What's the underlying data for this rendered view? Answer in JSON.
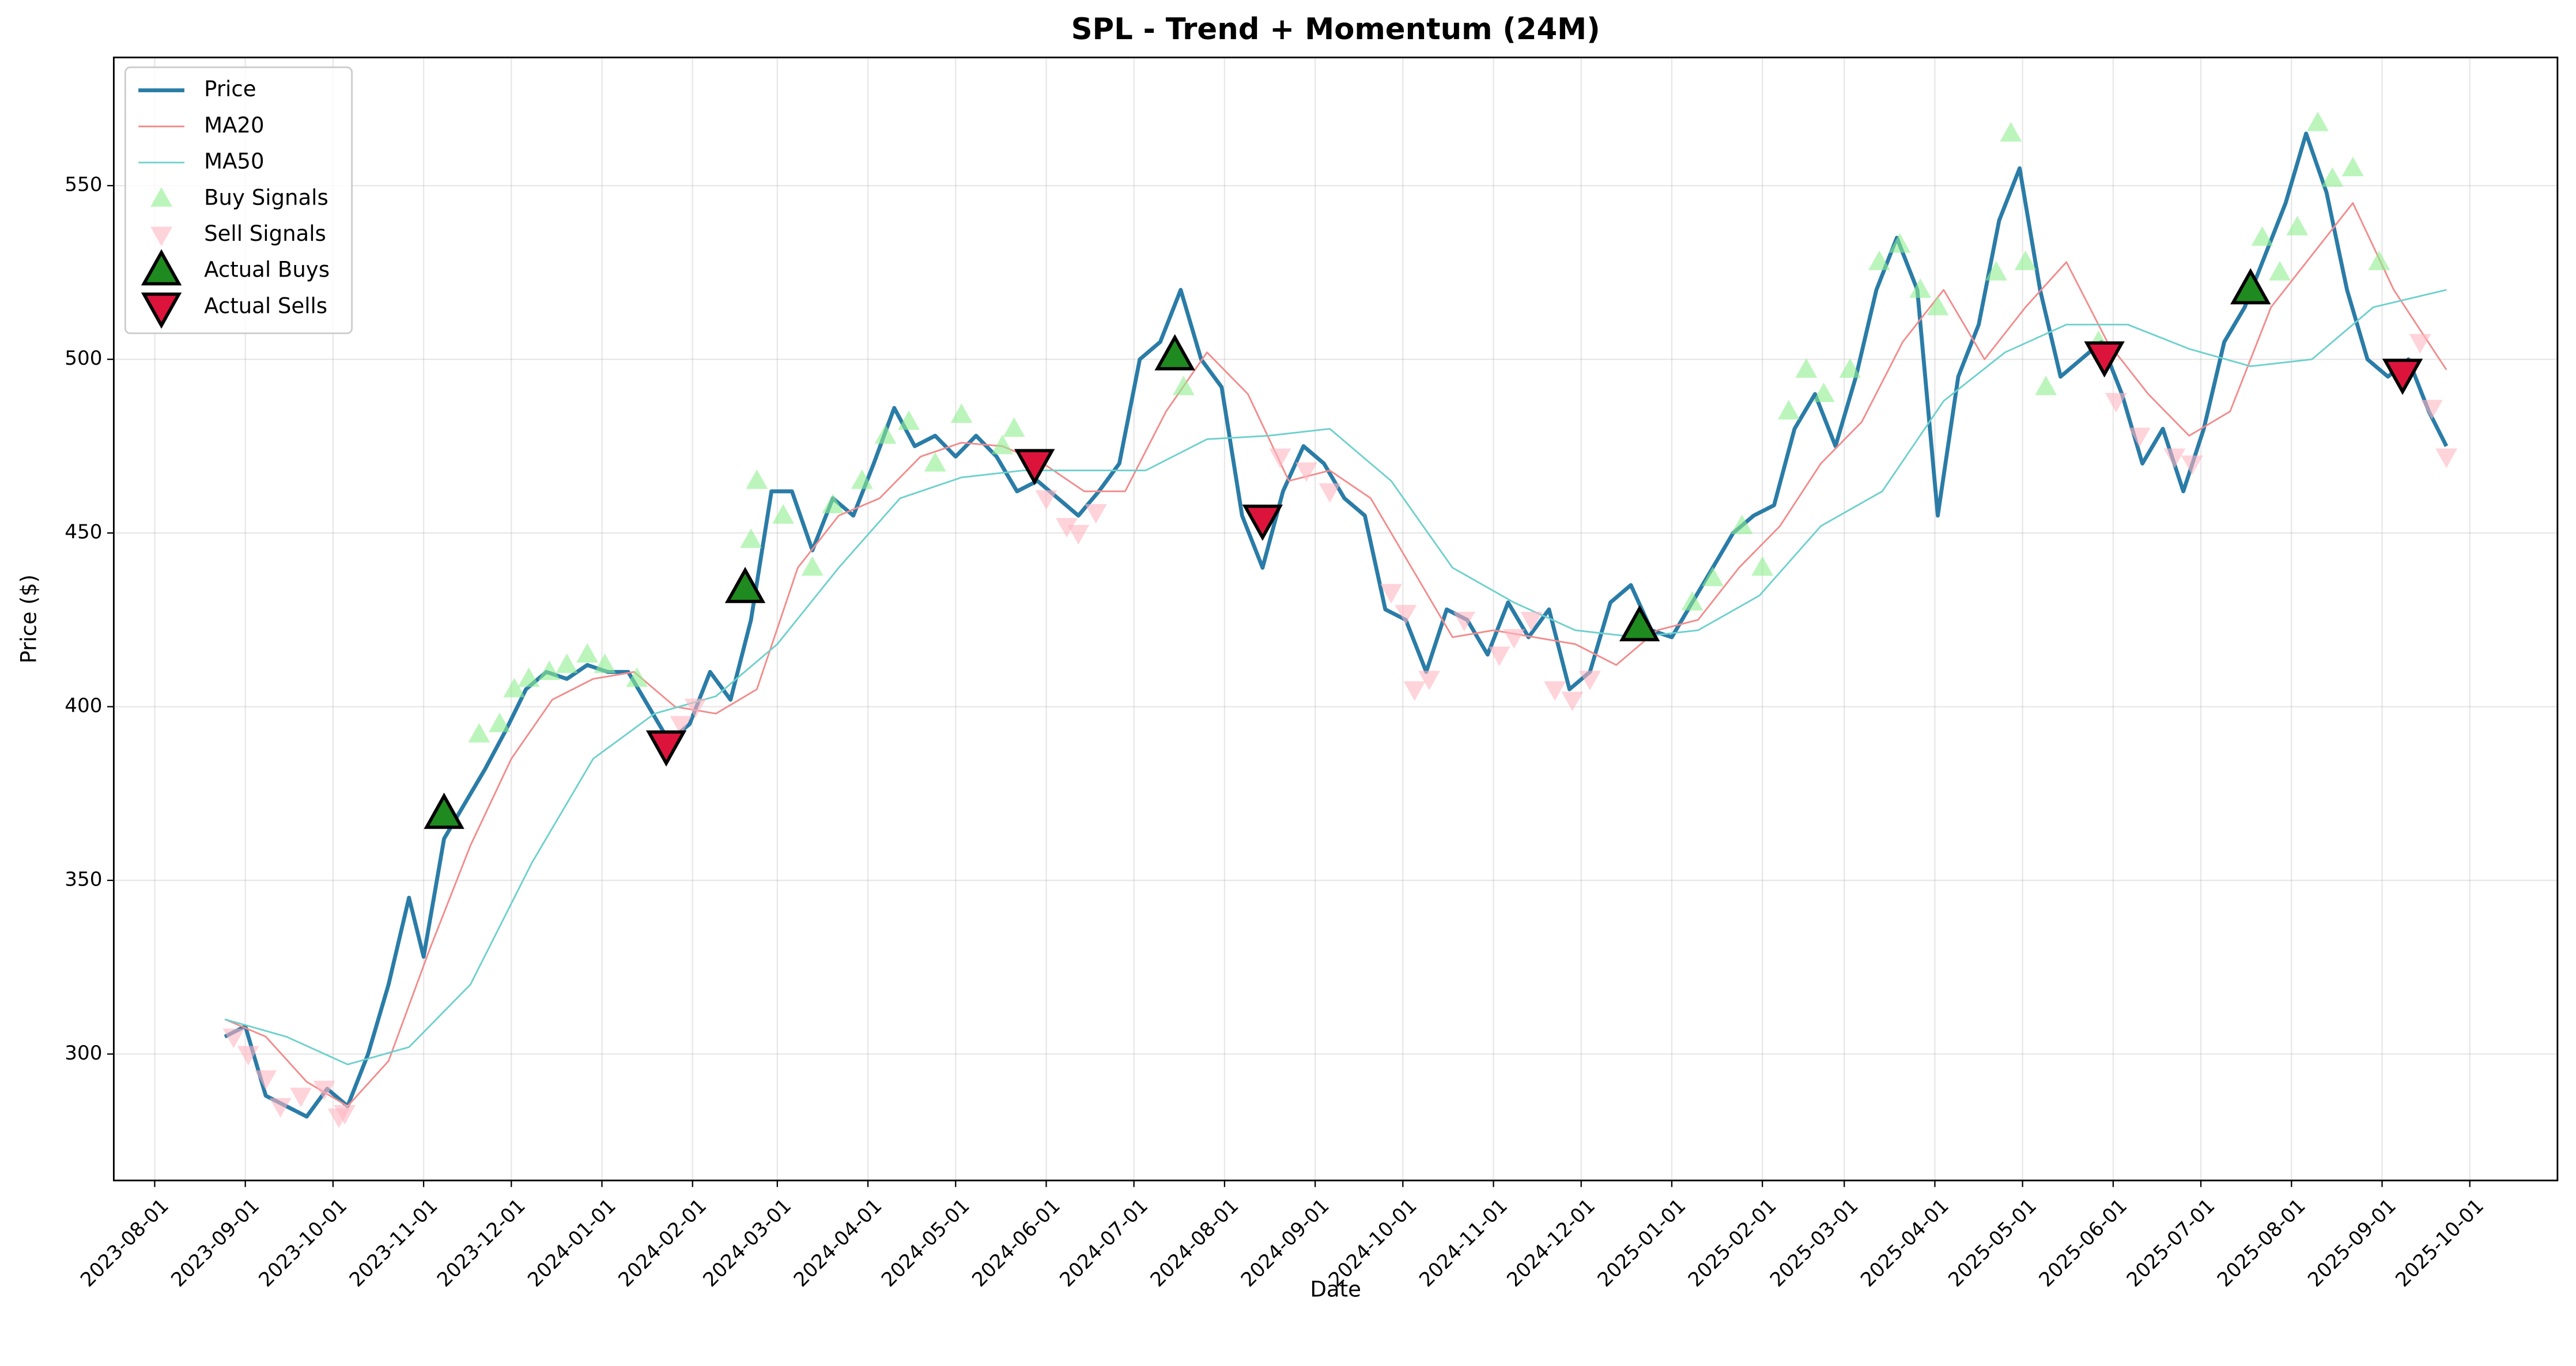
{
  "chart_data": {
    "type": "line",
    "title": "SPL - Trend + Momentum (24M)",
    "x_label": "Date",
    "y_label": "Price ($)",
    "xlim": [
      "2023-07-18",
      "2025-10-31"
    ],
    "ylim": [
      263.6,
      586.9
    ],
    "xticks": [
      "2023-08-01",
      "2023-09-01",
      "2023-10-01",
      "2023-11-01",
      "2023-12-01",
      "2024-01-01",
      "2024-02-01",
      "2024-03-01",
      "2024-04-01",
      "2024-05-01",
      "2024-06-01",
      "2024-07-01",
      "2024-08-01",
      "2024-09-01",
      "2024-10-01",
      "2024-11-01",
      "2024-12-01",
      "2025-01-01",
      "2025-02-01",
      "2025-03-01",
      "2025-04-01",
      "2025-05-01",
      "2025-06-01",
      "2025-07-01",
      "2025-08-01",
      "2025-09-01",
      "2025-10-01"
    ],
    "yticks": [
      300,
      350,
      400,
      450,
      500,
      550
    ],
    "grid": true,
    "legend": "upper left",
    "series": [
      {
        "name": "Price",
        "kind": "line",
        "color": "#2a7ca7",
        "width": 2.4,
        "x": [
          "2023-08-25",
          "2023-09-01",
          "2023-09-08",
          "2023-09-15",
          "2023-09-22",
          "2023-09-29",
          "2023-10-06",
          "2023-10-13",
          "2023-10-20",
          "2023-10-27",
          "2023-11-01",
          "2023-11-08",
          "2023-11-15",
          "2023-11-22",
          "2023-11-29",
          "2023-12-06",
          "2023-12-13",
          "2023-12-20",
          "2023-12-27",
          "2024-01-03",
          "2024-01-10",
          "2024-01-17",
          "2024-01-24",
          "2024-01-31",
          "2024-02-07",
          "2024-02-14",
          "2024-02-21",
          "2024-02-28",
          "2024-03-06",
          "2024-03-13",
          "2024-03-20",
          "2024-03-27",
          "2024-04-03",
          "2024-04-10",
          "2024-04-17",
          "2024-04-24",
          "2024-05-01",
          "2024-05-08",
          "2024-05-15",
          "2024-05-22",
          "2024-05-29",
          "2024-06-05",
          "2024-06-12",
          "2024-06-19",
          "2024-06-26",
          "2024-07-03",
          "2024-07-10",
          "2024-07-17",
          "2024-07-24",
          "2024-07-31",
          "2024-08-07",
          "2024-08-14",
          "2024-08-21",
          "2024-08-28",
          "2024-09-04",
          "2024-09-11",
          "2024-09-18",
          "2024-09-25",
          "2024-10-02",
          "2024-10-09",
          "2024-10-16",
          "2024-10-23",
          "2024-10-30",
          "2024-11-06",
          "2024-11-13",
          "2024-11-20",
          "2024-11-27",
          "2024-12-04",
          "2024-12-11",
          "2024-12-18",
          "2024-12-25",
          "2025-01-01",
          "2025-01-08",
          "2025-01-15",
          "2025-01-22",
          "2025-01-29",
          "2025-02-05",
          "2025-02-12",
          "2025-02-19",
          "2025-02-26",
          "2025-03-05",
          "2025-03-12",
          "2025-03-19",
          "2025-03-26",
          "2025-04-02",
          "2025-04-09",
          "2025-04-16",
          "2025-04-23",
          "2025-04-30",
          "2025-05-07",
          "2025-05-14",
          "2025-05-21",
          "2025-05-28",
          "2025-06-04",
          "2025-06-11",
          "2025-06-18",
          "2025-06-25",
          "2025-07-02",
          "2025-07-09",
          "2025-07-16",
          "2025-07-23",
          "2025-07-30",
          "2025-08-06",
          "2025-08-13",
          "2025-08-20",
          "2025-08-27",
          "2025-09-03",
          "2025-09-10",
          "2025-09-17",
          "2025-09-23"
        ],
        "values": [
          305,
          308,
          288,
          285,
          282,
          290,
          285,
          300,
          320,
          345,
          328,
          362,
          372,
          382,
          393,
          405,
          410,
          408,
          412,
          410,
          410,
          400,
          390,
          395,
          410,
          402,
          425,
          462,
          462,
          445,
          460,
          455,
          470,
          486,
          475,
          478,
          472,
          478,
          472,
          462,
          465,
          460,
          455,
          462,
          470,
          500,
          505,
          520,
          500,
          492,
          455,
          440,
          462,
          475,
          470,
          460,
          455,
          428,
          425,
          410,
          428,
          425,
          415,
          430,
          420,
          428,
          405,
          410,
          430,
          435,
          422,
          420,
          430,
          440,
          450,
          455,
          458,
          480,
          490,
          475,
          495,
          520,
          535,
          520,
          455,
          495,
          510,
          540,
          555,
          520,
          495,
          500,
          505,
          490,
          470,
          480,
          462,
          480,
          505,
          515,
          530,
          545,
          565,
          548,
          520,
          500,
          495,
          500,
          485,
          475
        ]
      },
      {
        "name": "MA20",
        "kind": "line",
        "color": "#f28b8b",
        "width": 1,
        "x": [
          "2023-08-25",
          "2023-09-08",
          "2023-09-22",
          "2023-10-06",
          "2023-10-20",
          "2023-11-03",
          "2023-11-17",
          "2023-12-01",
          "2023-12-15",
          "2023-12-29",
          "2024-01-12",
          "2024-01-26",
          "2024-02-09",
          "2024-02-23",
          "2024-03-08",
          "2024-03-22",
          "2024-04-05",
          "2024-04-19",
          "2024-05-03",
          "2024-05-17",
          "2024-05-31",
          "2024-06-14",
          "2024-06-28",
          "2024-07-12",
          "2024-07-26",
          "2024-08-09",
          "2024-08-23",
          "2024-09-06",
          "2024-09-20",
          "2024-10-04",
          "2024-10-18",
          "2024-11-01",
          "2024-11-15",
          "2024-11-29",
          "2024-12-13",
          "2024-12-27",
          "2025-01-10",
          "2025-01-24",
          "2025-02-07",
          "2025-02-21",
          "2025-03-07",
          "2025-03-21",
          "2025-04-04",
          "2025-04-18",
          "2025-05-02",
          "2025-05-16",
          "2025-05-30",
          "2025-06-13",
          "2025-06-27",
          "2025-07-11",
          "2025-07-25",
          "2025-08-08",
          "2025-08-22",
          "2025-09-05",
          "2025-09-23"
        ],
        "values": [
          310,
          305,
          292,
          285,
          298,
          330,
          360,
          385,
          402,
          408,
          410,
          400,
          398,
          405,
          440,
          455,
          460,
          472,
          476,
          475,
          470,
          462,
          462,
          485,
          502,
          490,
          465,
          468,
          460,
          440,
          420,
          422,
          420,
          418,
          412,
          422,
          425,
          440,
          452,
          470,
          482,
          505,
          520,
          500,
          515,
          528,
          505,
          490,
          478,
          485,
          515,
          530,
          545,
          520,
          497
        ]
      },
      {
        "name": "MA50",
        "kind": "line",
        "color": "#6dd0cc",
        "width": 1,
        "x": [
          "2023-08-25",
          "2023-09-15",
          "2023-10-06",
          "2023-10-27",
          "2023-11-17",
          "2023-12-08",
          "2023-12-29",
          "2024-01-19",
          "2024-02-09",
          "2024-03-01",
          "2024-03-22",
          "2024-04-12",
          "2024-05-03",
          "2024-05-24",
          "2024-06-14",
          "2024-07-05",
          "2024-07-26",
          "2024-08-16",
          "2024-09-06",
          "2024-09-27",
          "2024-10-18",
          "2024-11-08",
          "2024-11-29",
          "2024-12-20",
          "2025-01-10",
          "2025-01-31",
          "2025-02-21",
          "2025-03-14",
          "2025-04-04",
          "2025-04-25",
          "2025-05-16",
          "2025-06-06",
          "2025-06-27",
          "2025-07-18",
          "2025-08-08",
          "2025-08-29",
          "2025-09-23"
        ],
        "values": [
          310,
          305,
          297,
          302,
          320,
          355,
          385,
          398,
          403,
          418,
          440,
          460,
          466,
          468,
          468,
          468,
          477,
          478,
          480,
          465,
          440,
          430,
          422,
          420,
          422,
          432,
          452,
          462,
          488,
          502,
          510,
          510,
          503,
          498,
          500,
          515,
          520
        ]
      },
      {
        "name": "Buy Signals",
        "kind": "scatter",
        "marker": "up",
        "color": "#90ee90",
        "opacity": 0.6,
        "x": [
          "2023-11-20",
          "2023-11-27",
          "2023-12-02",
          "2023-12-07",
          "2023-12-14",
          "2023-12-20",
          "2023-12-27",
          "2024-01-02",
          "2024-01-13",
          "2024-02-21",
          "2024-02-23",
          "2024-03-03",
          "2024-03-13",
          "2024-03-20",
          "2024-03-30",
          "2024-04-07",
          "2024-04-15",
          "2024-04-24",
          "2024-05-03",
          "2024-05-17",
          "2024-05-21",
          "2024-07-18",
          "2025-01-08",
          "2025-01-15",
          "2025-01-25",
          "2025-02-01",
          "2025-02-10",
          "2025-02-16",
          "2025-02-22",
          "2025-03-03",
          "2025-03-13",
          "2025-03-20",
          "2025-03-27",
          "2025-04-02",
          "2025-04-22",
          "2025-04-27",
          "2025-05-02",
          "2025-05-09",
          "2025-05-27",
          "2025-07-22",
          "2025-07-28",
          "2025-08-03",
          "2025-08-10",
          "2025-08-15",
          "2025-08-22",
          "2025-08-31"
        ],
        "values": [
          392,
          395,
          405,
          408,
          410,
          412,
          415,
          412,
          408,
          448,
          465,
          455,
          440,
          458,
          465,
          478,
          482,
          470,
          484,
          475,
          480,
          492,
          430,
          437,
          452,
          440,
          485,
          497,
          490,
          497,
          528,
          533,
          520,
          515,
          525,
          565,
          528,
          492,
          505,
          535,
          525,
          538,
          568,
          552,
          555,
          528
        ]
      },
      {
        "name": "Sell Signals",
        "kind": "scatter",
        "marker": "down",
        "color": "#ffb6c1",
        "opacity": 0.6,
        "x": [
          "2023-08-28",
          "2023-09-02",
          "2023-09-08",
          "2023-09-13",
          "2023-09-20",
          "2023-09-28",
          "2023-10-03",
          "2023-10-05",
          "2024-01-28",
          "2024-02-02",
          "2024-06-01",
          "2024-06-08",
          "2024-06-12",
          "2024-06-18",
          "2024-08-20",
          "2024-08-29",
          "2024-09-06",
          "2024-09-27",
          "2024-10-02",
          "2024-10-05",
          "2024-10-10",
          "2024-10-22",
          "2024-11-03",
          "2024-11-08",
          "2024-11-14",
          "2024-11-22",
          "2024-11-28",
          "2024-12-04",
          "2025-06-02",
          "2025-06-10",
          "2025-06-22",
          "2025-06-28",
          "2025-09-14",
          "2025-09-18",
          "2025-09-23"
        ],
        "values": [
          305,
          300,
          293,
          285,
          288,
          290,
          282,
          283,
          395,
          400,
          460,
          452,
          450,
          456,
          472,
          468,
          462,
          433,
          427,
          405,
          408,
          425,
          415,
          420,
          425,
          405,
          402,
          408,
          488,
          478,
          472,
          470,
          505,
          486,
          472
        ]
      },
      {
        "name": "Actual Buys",
        "kind": "scatter",
        "marker": "up",
        "color": "#1f8a1f",
        "edge": "#000",
        "size": 1.6,
        "x": [
          "2023-11-08",
          "2024-02-19",
          "2024-07-15",
          "2024-12-21",
          "2025-07-18"
        ],
        "values": [
          369,
          434,
          501,
          423,
          520
        ]
      },
      {
        "name": "Actual Sells",
        "kind": "scatter",
        "marker": "down",
        "color": "#dc143c",
        "edge": "#000",
        "size": 1.6,
        "x": [
          "2024-01-23",
          "2024-05-28",
          "2024-08-14",
          "2025-05-29",
          "2025-09-08"
        ],
        "values": [
          389,
          470,
          454,
          501,
          496
        ]
      }
    ]
  }
}
